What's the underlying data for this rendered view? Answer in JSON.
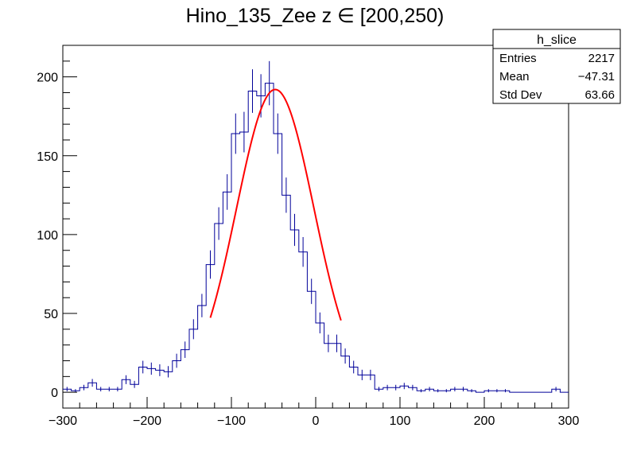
{
  "chart_data": {
    "type": "histogram",
    "title": "Hino_135_Zee z  ∈ [200,250)",
    "xlim": [
      -300,
      300
    ],
    "ylim": [
      -10,
      220
    ],
    "x_ticks": [
      -300,
      -200,
      -100,
      0,
      100,
      200,
      300
    ],
    "x_tick_labels": [
      "−300",
      "−200",
      "−100",
      "0",
      "100",
      "200",
      "300"
    ],
    "y_ticks": [
      0,
      50,
      100,
      150,
      200
    ],
    "y_tick_labels": [
      "0",
      "50",
      "100",
      "150",
      "200"
    ],
    "bin_width": 10,
    "bin_start": -300,
    "counts": [
      2,
      1,
      3,
      6,
      2,
      2,
      2,
      8,
      5,
      16,
      15,
      14,
      13,
      20,
      27,
      40,
      55,
      81,
      107,
      127,
      164,
      165,
      191,
      188,
      196,
      164,
      125,
      103,
      89,
      64,
      44,
      31,
      31,
      23,
      16,
      11,
      11,
      2,
      3,
      3,
      4,
      3,
      1,
      2,
      1,
      1,
      2,
      2,
      1,
      0,
      1,
      1,
      1,
      0,
      0,
      0,
      0,
      0,
      2,
      0
    ],
    "hist_color": "#000099",
    "fit": {
      "type": "gaus",
      "color": "#ff0000",
      "constant": 192,
      "mean": -48,
      "sigma": 46,
      "range": [
        -125,
        30
      ]
    },
    "stats": {
      "name": "h_slice",
      "rows": [
        {
          "label": "Entries",
          "value": "2217"
        },
        {
          "label": "Mean",
          "value": "−47.31"
        },
        {
          "label": "Std Dev",
          "value": "63.66"
        }
      ]
    }
  }
}
